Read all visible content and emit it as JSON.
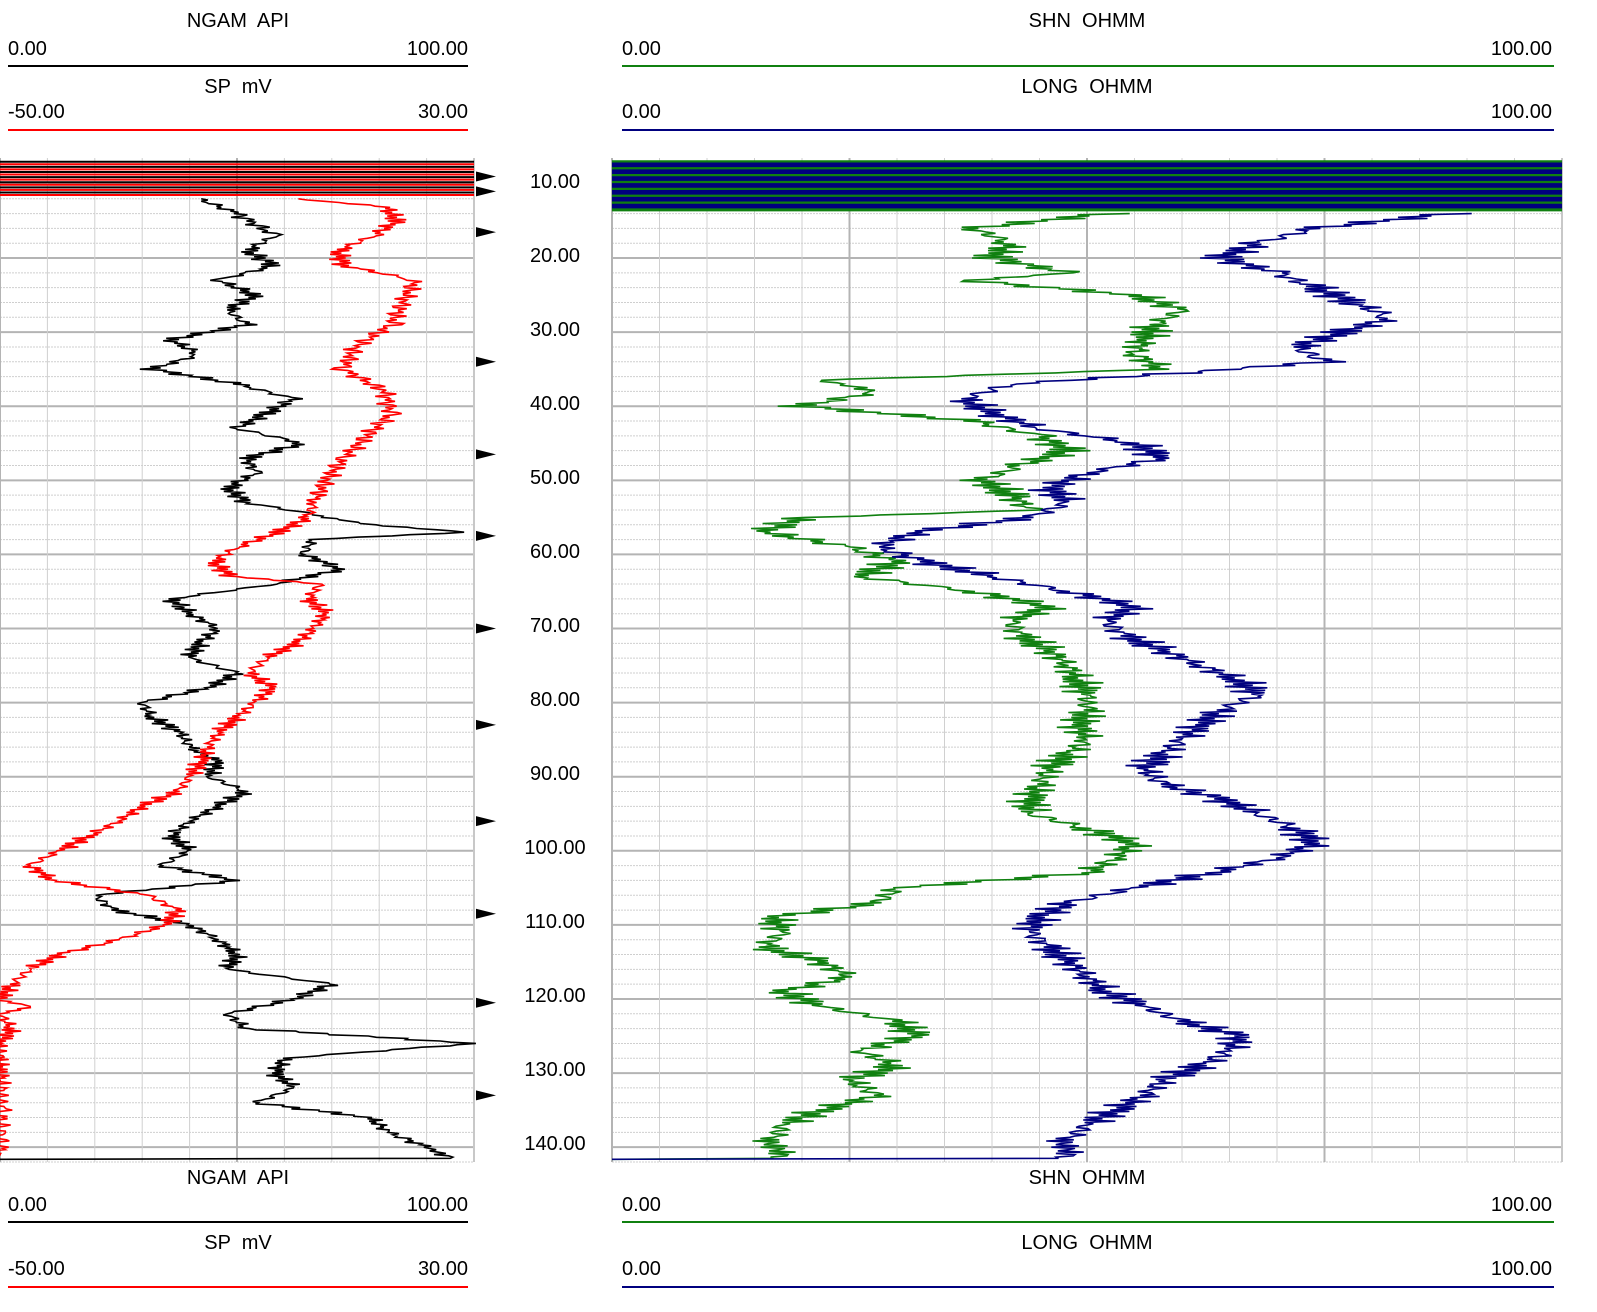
{
  "chart_data": {
    "type": "line",
    "depth_ticks": [
      10,
      20,
      30,
      40,
      50,
      60,
      70,
      80,
      90,
      100,
      110,
      120,
      130,
      140
    ],
    "depth_tick_labels": [
      "10.00",
      "20.00",
      "30.00",
      "40.00",
      "50.00",
      "60.00",
      "70.00",
      "80.00",
      "90.00",
      "100.00",
      "110.00",
      "120.00",
      "130.00",
      "140.00"
    ],
    "depth_range": [
      6.5,
      142
    ],
    "tracks": [
      {
        "curves": [
          {
            "name": "NGAM",
            "unit": "API",
            "color": "#000000",
            "range": [
              0,
              100
            ],
            "min_label": "0.00",
            "max_label": "100.00",
            "depth": [
              12,
              14,
              17,
              19,
              21,
              23,
              25,
              27,
              29,
              31,
              33,
              35,
              37,
              39,
              41,
              43,
              45,
              47,
              49,
              51,
              53,
              55,
              56,
              57,
              58,
              60,
              62,
              64,
              66,
              68,
              70,
              72,
              74,
              76,
              78,
              80,
              82,
              84,
              86,
              88,
              90,
              92,
              94,
              96,
              98,
              100,
              102,
              104,
              106,
              108,
              110,
              112,
              114,
              116,
              118,
              120,
              122,
              124,
              126,
              128,
              130,
              132,
              134,
              136,
              138,
              140,
              141.5
            ],
            "values": [
              42,
              50,
              58,
              52,
              58,
              46,
              54,
              48,
              52,
              36,
              42,
              32,
              50,
              62,
              56,
              50,
              64,
              52,
              54,
              48,
              52,
              70,
              80,
              100,
              66,
              64,
              72,
              58,
              36,
              40,
              46,
              42,
              40,
              50,
              44,
              30,
              32,
              38,
              40,
              46,
              44,
              52,
              46,
              40,
              36,
              40,
              34,
              50,
              20,
              24,
              40,
              46,
              50,
              48,
              70,
              62,
              48,
              52,
              100,
              60,
              58,
              62,
              54,
              78,
              82,
              90,
              95
            ]
          },
          {
            "name": "SP",
            "unit": "mV",
            "color": "#ff0000",
            "range": [
              -50,
              30
            ],
            "min_label": "-50.00",
            "max_label": "30.00",
            "depth": [
              12,
              13,
              15,
              17,
              19,
              21,
              23,
              26,
              29,
              32,
              35,
              38,
              41,
              44,
              47,
              50,
              53,
              55,
              57,
              59,
              61,
              63,
              64,
              66,
              68,
              70,
              72,
              74,
              76,
              78,
              80,
              82,
              84,
              86,
              88,
              90,
              92,
              94,
              96,
              98,
              100,
              102,
              104,
              106,
              108,
              110,
              112,
              114,
              116,
              118,
              120,
              121,
              122,
              124,
              126,
              128,
              130,
              135,
              141
            ],
            "values": [
              0,
              15,
              17,
              13,
              7,
              8,
              20,
              18,
              16,
              10,
              8,
              15,
              16,
              12,
              8,
              5,
              3,
              2,
              -3,
              -10,
              -14,
              -11,
              4,
              2,
              5,
              3,
              0,
              -5,
              -8,
              -4,
              -7,
              -10,
              -13,
              -15,
              -16,
              -18,
              -20,
              -26,
              -30,
              -35,
              -40,
              -45,
              -41,
              -25,
              -20,
              -22,
              -30,
              -40,
              -45,
              -48,
              -50,
              -44,
              -50,
              -48,
              -50,
              -50,
              -50,
              -50,
              -50
            ]
          }
        ]
      },
      {
        "curves": [
          {
            "name": "SHN",
            "unit": "OHMM",
            "color": "#108010",
            "range": [
              0,
              100
            ],
            "min_label": "0.00",
            "max_label": "100.00",
            "depth": [
              14,
              16,
              18,
              20,
              22,
              23,
              25,
              27,
              29,
              31,
              33,
              35,
              36.5,
              38,
              40,
              42,
              44,
              46,
              48,
              50,
              52,
              54,
              55,
              57,
              59,
              61,
              63,
              65,
              67,
              69,
              71,
              73,
              75,
              77,
              79,
              81,
              83,
              85,
              87,
              89,
              91,
              93,
              95,
              97,
              99,
              101,
              103,
              105,
              107,
              109,
              111,
              113,
              115,
              117,
              119,
              121,
              123,
              125,
              127,
              129,
              131,
              133,
              135,
              137,
              139,
              141.5
            ],
            "values": [
              52,
              38,
              42,
              40,
              48,
              37,
              55,
              60,
              57,
              56,
              55,
              58,
              22,
              28,
              20,
              38,
              45,
              48,
              43,
              39,
              42,
              44,
              20,
              16,
              25,
              30,
              26,
              38,
              46,
              42,
              43,
              46,
              48,
              49,
              50,
              50,
              49,
              50,
              48,
              46,
              45,
              44,
              44,
              50,
              55,
              53,
              50,
              30,
              28,
              17,
              18,
              16,
              22,
              25,
              18,
              22,
              30,
              32,
              26,
              30,
              25,
              28,
              22,
              18,
              17,
              17
            ]
          },
          {
            "name": "LONG",
            "unit": "OHMM",
            "color": "#00007f",
            "range": [
              0,
              100
            ],
            "min_label": "0.00",
            "max_label": "100.00",
            "depth": [
              14,
              16,
              18,
              20,
              22,
              24,
              26,
              28,
              30,
              32,
              34,
              35.5,
              37,
              39,
              41,
              43,
              45,
              47,
              49,
              51,
              53,
              55,
              57,
              59,
              61,
              63,
              65,
              67,
              69,
              71,
              73,
              75,
              77,
              79,
              81,
              83,
              85,
              87,
              89,
              91,
              93,
              95,
              97,
              99,
              101,
              103,
              105,
              107,
              109,
              111,
              113,
              115,
              117,
              119,
              121,
              123,
              125,
              127,
              129,
              131,
              133,
              135,
              137,
              139,
              141.5
            ],
            "values": [
              88,
              74,
              68,
              64,
              70,
              74,
              78,
              82,
              77,
              72,
              75,
              60,
              42,
              37,
              40,
              45,
              55,
              58,
              50,
              46,
              48,
              44,
              32,
              28,
              33,
              40,
              48,
              55,
              52,
              54,
              58,
              62,
              66,
              68,
              64,
              62,
              60,
              58,
              56,
              58,
              64,
              68,
              72,
              74,
              70,
              63,
              55,
              48,
              45,
              44,
              46,
              48,
              50,
              52,
              56,
              60,
              66,
              65,
              62,
              58,
              56,
              53,
              50,
              48,
              47
            ]
          }
        ]
      }
    ]
  }
}
